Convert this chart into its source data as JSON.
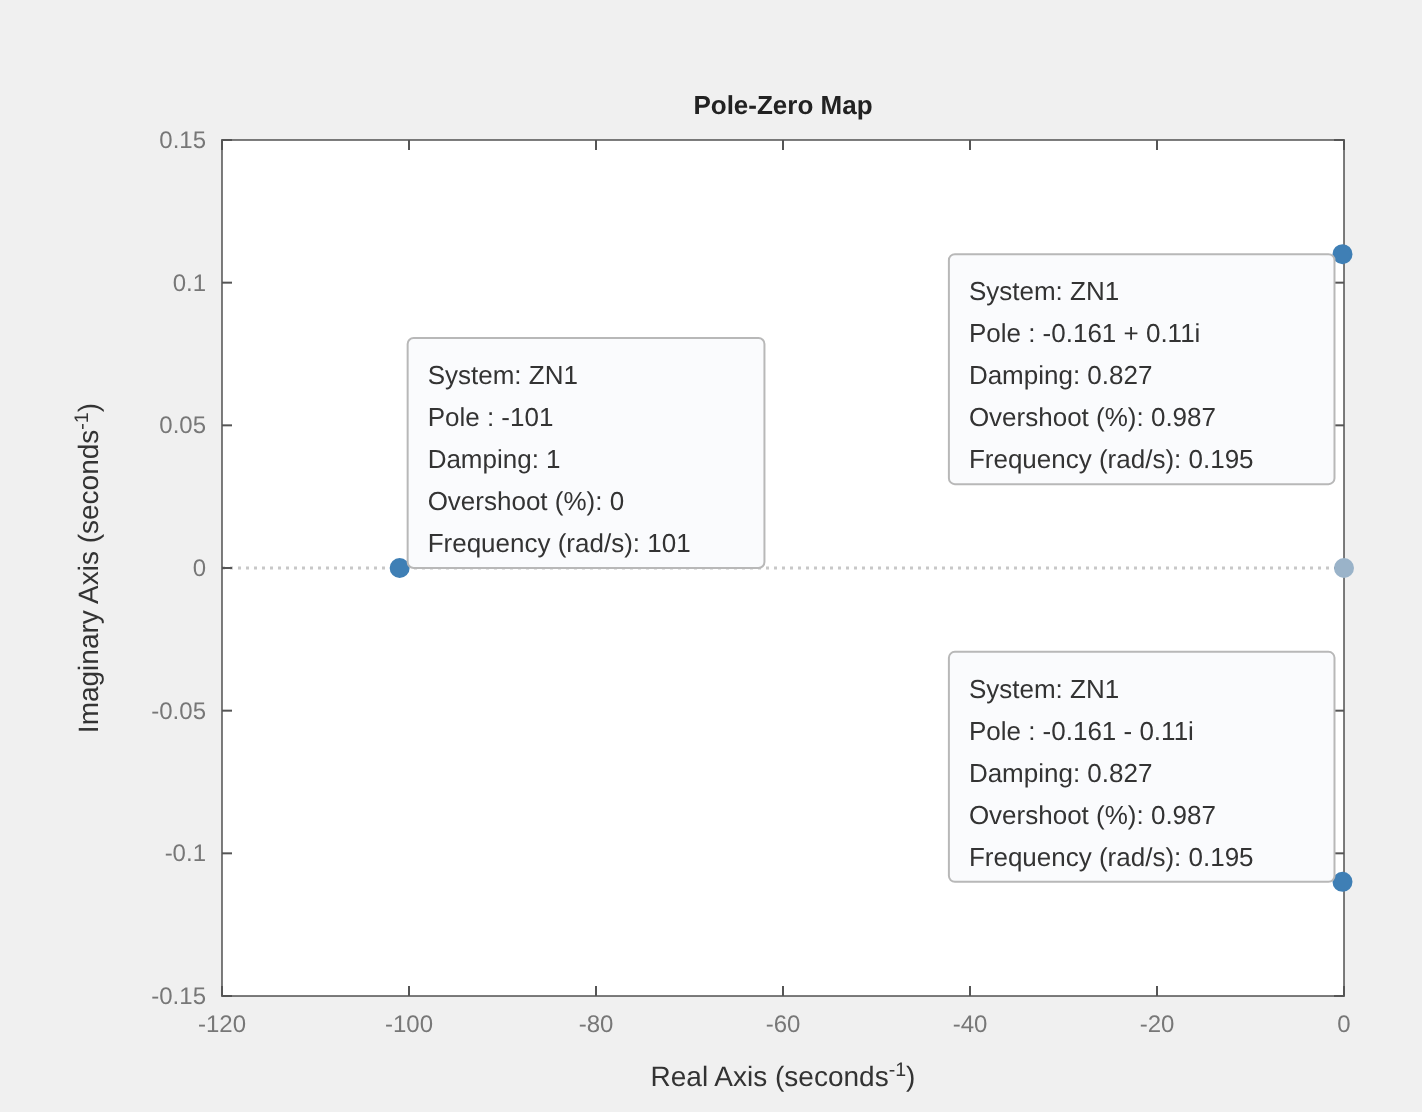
{
  "chart_data": {
    "type": "scatter",
    "title": "Pole-Zero Map",
    "xlabel": "Real Axis (seconds$^{-1}$)",
    "ylabel": "Imaginary Axis (seconds$^{-1}$)",
    "series": [
      {
        "color": "#3f7fb5",
        "x": [
          -101,
          -0.161,
          -0.161
        ],
        "values": [
          0,
          0.11,
          -0.11
        ]
      },
      {
        "color": "#9ab3c9",
        "x": [
          0
        ],
        "values": [
          0
        ]
      }
    ],
    "marker": "circle",
    "xlim": [
      -120,
      0
    ],
    "xticks": [
      -120,
      -100,
      -80,
      -60,
      -40,
      -20,
      0
    ],
    "ylim": [
      -0.15,
      0.15
    ],
    "yticks": [
      -0.15,
      -0.1,
      -0.05,
      0,
      0.05,
      0.1,
      0.15
    ],
    "ref_lines": [
      {
        "axis": "y",
        "value": 0,
        "color": "#c8c8c8",
        "line_style": "dotted"
      }
    ],
    "annotations": [
      "System: ZN1\nPole : -101\nDamping: 1\nOvershoot (%): 0\nFrequency (rad/s): 101",
      "System: ZN1\nPole : -0.161 + 0.11i\nDamping: 0.827\nOvershoot (%): 0.987\nFrequency (rad/s): 0.195",
      "System: ZN1\nPole : -0.161 - 0.11i\nDamping: 0.827\nOvershoot (%): 0.987\nFrequency (rad/s): 0.195"
    ]
  }
}
